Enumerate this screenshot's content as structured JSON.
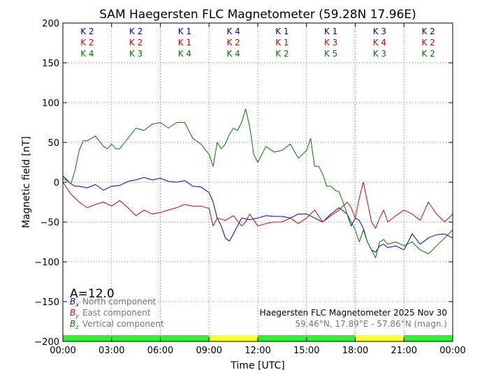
{
  "chart_data": {
    "type": "line",
    "title": "SAM Haegersten FLC Magnetometer (59.28N 17.96E)",
    "xlabel": "Time [UTC]",
    "ylabel": "Magnetic field [nT]",
    "xlim": [
      0,
      24
    ],
    "ylim": [
      -200,
      200
    ],
    "x_ticks": [
      0,
      3,
      6,
      9,
      12,
      15,
      18,
      21,
      24
    ],
    "x_tick_labels": [
      "00:00",
      "03:00",
      "06:00",
      "09:00",
      "12:00",
      "15:00",
      "18:00",
      "21:00",
      "00:00"
    ],
    "y_ticks": [
      200,
      150,
      100,
      50,
      0,
      -50,
      -100,
      -150,
      -200
    ],
    "y_tick_labels": [
      "200",
      "150",
      "100",
      "50",
      "0",
      "−50",
      "−100",
      "−150",
      "−200"
    ],
    "grid": true,
    "k_indices": {
      "rows": [
        {
          "color": "#0000cc",
          "values": [
            "K 2",
            "K 2",
            "K 1",
            "K 4",
            "K 1",
            "K 1",
            "K 3",
            "K 2"
          ]
        },
        {
          "color": "#dd0000",
          "values": [
            "K 2",
            "K 2",
            "K 1",
            "K 2",
            "K 1",
            "K 3",
            "K 4",
            "K 2"
          ]
        },
        {
          "color": "#007700",
          "values": [
            "K 4",
            "K 3",
            "K 4",
            "K 4",
            "K 2",
            "K 5",
            "K 3",
            "K 2"
          ]
        }
      ]
    },
    "activity_bar": {
      "segments": [
        {
          "from": 0,
          "to": 9,
          "color": "#33ee33"
        },
        {
          "from": 9,
          "to": 12,
          "color": "#ffff33"
        },
        {
          "from": 12,
          "to": 18,
          "color": "#33ee33"
        },
        {
          "from": 18,
          "to": 21,
          "color": "#ffff33"
        },
        {
          "from": 21,
          "to": 24,
          "color": "#33ee33"
        }
      ]
    },
    "a_index": "A=12.0",
    "legend": {
      "placement": "bottom-left",
      "entries": [
        {
          "symbol": "B",
          "sub": "x",
          "label": "North component",
          "color": "#0000cc"
        },
        {
          "symbol": "B",
          "sub": "y",
          "label": "East component",
          "color": "#dd0000"
        },
        {
          "symbol": "B",
          "sub": "z",
          "label": "Vertical component",
          "color": "#007700"
        }
      ]
    },
    "info_line1": "Haegersten FLC Magnetometer 2025 Nov 30",
    "info_line2": "59.46°N, 17.89°E - 57.86°N (magn.)",
    "series": [
      {
        "key": "bx",
        "color": "#0000cc",
        "x": [
          0,
          0.25,
          0.5,
          0.75,
          1,
          1.5,
          2,
          2.5,
          3,
          3.5,
          4,
          4.5,
          5,
          5.5,
          6,
          6.5,
          7,
          7.5,
          8,
          8.5,
          9,
          9.25,
          9.5,
          9.75,
          10,
          10.25,
          10.5,
          10.75,
          11,
          11.5,
          12,
          12.5,
          13,
          13.5,
          14,
          14.5,
          15,
          15.5,
          16,
          16.5,
          17,
          17.5,
          17.75,
          18,
          18.25,
          18.5,
          18.75,
          19,
          19.25,
          19.5,
          19.75,
          20,
          20.5,
          21,
          21.5,
          22,
          22.5,
          23,
          23.5,
          24
        ],
        "y": [
          8,
          3,
          -2,
          -5,
          -5,
          -7,
          -3,
          -10,
          -5,
          -4,
          1,
          3,
          6,
          3,
          5,
          1,
          0,
          2,
          -5,
          -6,
          -13,
          -25,
          -45,
          -55,
          -70,
          -74,
          -65,
          -55,
          -45,
          -47,
          -45,
          -42,
          -43,
          -43,
          -45,
          -40,
          -40,
          -45,
          -50,
          -40,
          -32,
          -40,
          -55,
          -45,
          -48,
          -58,
          -75,
          -85,
          -88,
          -80,
          -78,
          -82,
          -80,
          -85,
          -65,
          -78,
          -70,
          -66,
          -65,
          -70
        ]
      },
      {
        "key": "by",
        "color": "#dd0000",
        "x": [
          0,
          0.5,
          1,
          1.5,
          2,
          2.5,
          3,
          3.5,
          4,
          4.5,
          5,
          5.5,
          6,
          6.5,
          7,
          7.5,
          8,
          8.5,
          9,
          9.25,
          9.5,
          10,
          10.5,
          11,
          11.25,
          11.5,
          12,
          12.5,
          13,
          13.5,
          14,
          14.5,
          15,
          15.5,
          16,
          16.5,
          17,
          17.5,
          17.75,
          18,
          18.25,
          18.5,
          18.75,
          19,
          19.25,
          19.5,
          19.75,
          20,
          20.5,
          21,
          21.5,
          22,
          22.5,
          23,
          23.5,
          24
        ],
        "y": [
          0,
          -15,
          -25,
          -32,
          -28,
          -25,
          -30,
          -23,
          -32,
          -42,
          -35,
          -40,
          -38,
          -35,
          -32,
          -28,
          -30,
          -30,
          -33,
          -55,
          -45,
          -48,
          -42,
          -55,
          -50,
          -40,
          -55,
          -52,
          -50,
          -50,
          -45,
          -52,
          -45,
          -35,
          -50,
          -42,
          -35,
          -25,
          -32,
          -45,
          -20,
          0,
          -25,
          -50,
          -58,
          -45,
          -35,
          -50,
          -42,
          -35,
          -40,
          -48,
          -25,
          -40,
          -50,
          -40
        ]
      },
      {
        "key": "bz",
        "color": "#007700",
        "x": [
          0,
          0.25,
          0.5,
          0.75,
          1,
          1.25,
          1.5,
          2,
          2.5,
          2.75,
          3,
          3.25,
          3.5,
          4,
          4.5,
          5,
          5.5,
          6,
          6.5,
          7,
          7.5,
          8,
          8.5,
          9,
          9.25,
          9.5,
          9.75,
          10,
          10.25,
          10.5,
          10.75,
          11,
          11.25,
          11.5,
          11.75,
          12,
          12.5,
          13,
          13.5,
          14,
          14.5,
          15,
          15.25,
          15.5,
          15.75,
          16,
          16.25,
          16.5,
          16.75,
          17,
          17.25,
          17.5,
          17.75,
          18,
          18.25,
          18.5,
          18.75,
          19,
          19.25,
          19.5,
          19.75,
          20,
          20.5,
          21,
          21.5,
          22,
          22.5,
          23,
          23.5,
          24
        ],
        "y": [
          5,
          2,
          -2,
          15,
          40,
          52,
          52,
          58,
          45,
          42,
          48,
          42,
          42,
          55,
          68,
          65,
          73,
          75,
          68,
          75,
          75,
          55,
          48,
          35,
          20,
          50,
          42,
          48,
          60,
          68,
          65,
          75,
          92,
          70,
          35,
          25,
          45,
          38,
          40,
          48,
          30,
          40,
          55,
          20,
          20,
          10,
          -5,
          -5,
          -10,
          -12,
          -25,
          -40,
          -50,
          -60,
          -75,
          -60,
          -75,
          -85,
          -95,
          -75,
          -72,
          -78,
          -75,
          -80,
          -75,
          -85,
          -90,
          -80,
          -70,
          -60
        ]
      }
    ]
  }
}
